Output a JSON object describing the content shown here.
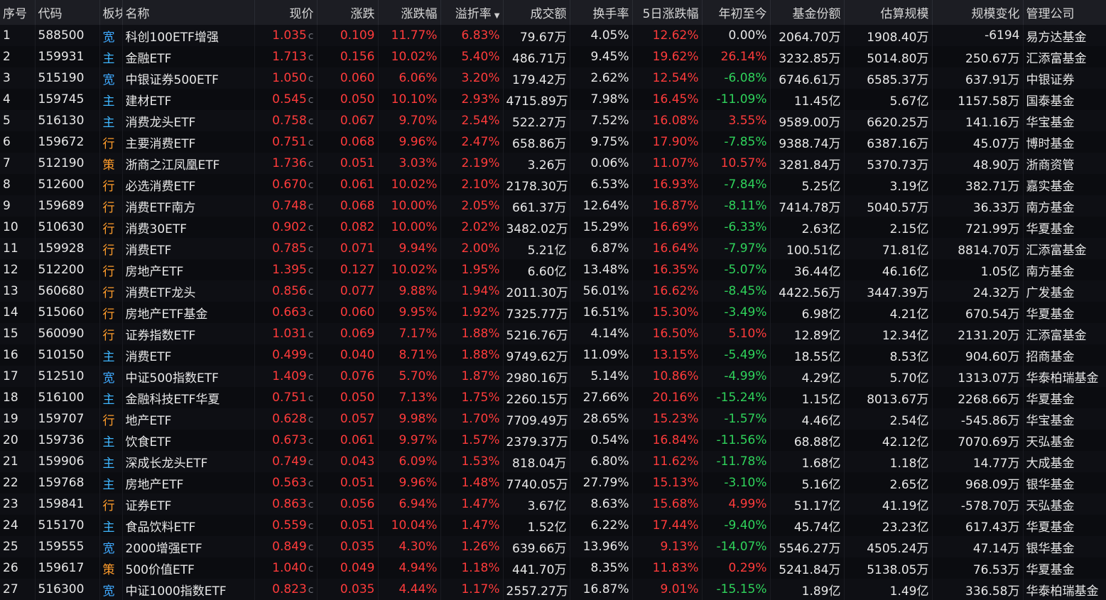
{
  "columns": [
    {
      "key": "idx",
      "label": "序号"
    },
    {
      "key": "code",
      "label": "代码"
    },
    {
      "key": "sector",
      "label": "板块"
    },
    {
      "key": "name",
      "label": "名称"
    },
    {
      "key": "price",
      "label": "现价"
    },
    {
      "key": "change",
      "label": "涨跌"
    },
    {
      "key": "pct",
      "label": "涨跌幅"
    },
    {
      "key": "premium",
      "label": "溢折率"
    },
    {
      "key": "volume",
      "label": "成交额"
    },
    {
      "key": "turnover",
      "label": "换手率"
    },
    {
      "key": "pct5",
      "label": "5日涨跌幅"
    },
    {
      "key": "ytd",
      "label": "年初至今"
    },
    {
      "key": "shares",
      "label": "基金份额"
    },
    {
      "key": "scale",
      "label": "估算规模"
    },
    {
      "key": "scale_change",
      "label": "规模变化"
    },
    {
      "key": "manager",
      "label": "管理公司"
    }
  ],
  "sorted_column": "premium",
  "price_suffix": "c",
  "rows": [
    {
      "idx": "1",
      "code": "588500",
      "sector": "宽",
      "name": "科创100ETF增强",
      "price": "1.035",
      "change": "0.109",
      "pct": "11.77%",
      "premium": "6.83%",
      "volume": "79.67万",
      "turnover": "4.05%",
      "pct5": "12.62%",
      "ytd": "0.00%",
      "shares": "2064.70万",
      "scale": "1908.40万",
      "scale_change": "-6194",
      "manager": "易方达基金"
    },
    {
      "idx": "2",
      "code": "159931",
      "sector": "主",
      "name": "金融ETF",
      "price": "1.713",
      "change": "0.156",
      "pct": "10.02%",
      "premium": "5.40%",
      "volume": "486.71万",
      "turnover": "9.45%",
      "pct5": "19.62%",
      "ytd": "26.14%",
      "shares": "3232.85万",
      "scale": "5014.80万",
      "scale_change": "250.67万",
      "manager": "汇添富基金"
    },
    {
      "idx": "3",
      "code": "515190",
      "sector": "宽",
      "name": "中银证券500ETF",
      "price": "1.050",
      "change": "0.060",
      "pct": "6.06%",
      "premium": "3.20%",
      "volume": "179.42万",
      "turnover": "2.62%",
      "pct5": "12.54%",
      "ytd": "-6.08%",
      "shares": "6746.61万",
      "scale": "6585.37万",
      "scale_change": "637.91万",
      "manager": "中银证券"
    },
    {
      "idx": "4",
      "code": "159745",
      "sector": "主",
      "name": "建材ETF",
      "price": "0.545",
      "change": "0.050",
      "pct": "10.10%",
      "premium": "2.93%",
      "volume": "4715.89万",
      "turnover": "7.98%",
      "pct5": "16.45%",
      "ytd": "-11.09%",
      "shares": "11.45亿",
      "scale": "5.67亿",
      "scale_change": "1157.58万",
      "manager": "国泰基金"
    },
    {
      "idx": "5",
      "code": "516130",
      "sector": "主",
      "name": "消费龙头ETF",
      "price": "0.758",
      "change": "0.067",
      "pct": "9.70%",
      "premium": "2.54%",
      "volume": "522.27万",
      "turnover": "7.52%",
      "pct5": "16.08%",
      "ytd": "3.55%",
      "shares": "9589.00万",
      "scale": "6620.25万",
      "scale_change": "141.16万",
      "manager": "华宝基金"
    },
    {
      "idx": "6",
      "code": "159672",
      "sector": "行",
      "name": "主要消费ETF",
      "price": "0.751",
      "change": "0.068",
      "pct": "9.96%",
      "premium": "2.47%",
      "volume": "658.86万",
      "turnover": "9.75%",
      "pct5": "17.90%",
      "ytd": "-7.85%",
      "shares": "9388.74万",
      "scale": "6387.16万",
      "scale_change": "45.07万",
      "manager": "博时基金"
    },
    {
      "idx": "7",
      "code": "512190",
      "sector": "策",
      "name": "浙商之江凤凰ETF",
      "price": "1.736",
      "change": "0.051",
      "pct": "3.03%",
      "premium": "2.19%",
      "volume": "3.26万",
      "turnover": "0.06%",
      "pct5": "11.07%",
      "ytd": "10.57%",
      "shares": "3281.84万",
      "scale": "5370.73万",
      "scale_change": "48.90万",
      "manager": "浙商资管"
    },
    {
      "idx": "8",
      "code": "512600",
      "sector": "行",
      "name": "必选消费ETF",
      "price": "0.670",
      "change": "0.061",
      "pct": "10.02%",
      "premium": "2.10%",
      "volume": "2178.30万",
      "turnover": "6.53%",
      "pct5": "16.93%",
      "ytd": "-7.84%",
      "shares": "5.25亿",
      "scale": "3.19亿",
      "scale_change": "382.71万",
      "manager": "嘉实基金"
    },
    {
      "idx": "9",
      "code": "159689",
      "sector": "行",
      "name": "消费ETF南方",
      "price": "0.748",
      "change": "0.068",
      "pct": "10.00%",
      "premium": "2.05%",
      "volume": "661.37万",
      "turnover": "12.64%",
      "pct5": "16.87%",
      "ytd": "-8.11%",
      "shares": "7414.78万",
      "scale": "5040.57万",
      "scale_change": "36.33万",
      "manager": "南方基金"
    },
    {
      "idx": "10",
      "code": "510630",
      "sector": "行",
      "name": "消费30ETF",
      "price": "0.902",
      "change": "0.082",
      "pct": "10.00%",
      "premium": "2.02%",
      "volume": "3482.02万",
      "turnover": "15.29%",
      "pct5": "16.69%",
      "ytd": "-6.33%",
      "shares": "2.63亿",
      "scale": "2.15亿",
      "scale_change": "721.99万",
      "manager": "华夏基金"
    },
    {
      "idx": "11",
      "code": "159928",
      "sector": "行",
      "name": "消费ETF",
      "price": "0.785",
      "change": "0.071",
      "pct": "9.94%",
      "premium": "2.00%",
      "volume": "5.21亿",
      "turnover": "6.87%",
      "pct5": "16.64%",
      "ytd": "-7.97%",
      "shares": "100.51亿",
      "scale": "71.81亿",
      "scale_change": "8814.70万",
      "manager": "汇添富基金"
    },
    {
      "idx": "12",
      "code": "512200",
      "sector": "行",
      "name": "房地产ETF",
      "price": "1.395",
      "change": "0.127",
      "pct": "10.02%",
      "premium": "1.95%",
      "volume": "6.60亿",
      "turnover": "13.48%",
      "pct5": "16.35%",
      "ytd": "-5.07%",
      "shares": "36.44亿",
      "scale": "46.16亿",
      "scale_change": "1.05亿",
      "manager": "南方基金"
    },
    {
      "idx": "13",
      "code": "560680",
      "sector": "行",
      "name": "消费ETF龙头",
      "price": "0.856",
      "change": "0.077",
      "pct": "9.88%",
      "premium": "1.94%",
      "volume": "2011.30万",
      "turnover": "56.01%",
      "pct5": "16.62%",
      "ytd": "-8.45%",
      "shares": "4422.56万",
      "scale": "3447.39万",
      "scale_change": "24.32万",
      "manager": "广发基金"
    },
    {
      "idx": "14",
      "code": "515060",
      "sector": "行",
      "name": "房地产ETF基金",
      "price": "0.663",
      "change": "0.060",
      "pct": "9.95%",
      "premium": "1.92%",
      "volume": "7325.77万",
      "turnover": "16.51%",
      "pct5": "15.30%",
      "ytd": "-3.49%",
      "shares": "6.98亿",
      "scale": "4.21亿",
      "scale_change": "670.54万",
      "manager": "华夏基金"
    },
    {
      "idx": "15",
      "code": "560090",
      "sector": "行",
      "name": "证券指数ETF",
      "price": "1.031",
      "change": "0.069",
      "pct": "7.17%",
      "premium": "1.88%",
      "volume": "5216.76万",
      "turnover": "4.14%",
      "pct5": "16.50%",
      "ytd": "5.10%",
      "shares": "12.89亿",
      "scale": "12.34亿",
      "scale_change": "2131.20万",
      "manager": "汇添富基金"
    },
    {
      "idx": "16",
      "code": "510150",
      "sector": "主",
      "name": "消费ETF",
      "price": "0.499",
      "change": "0.040",
      "pct": "8.71%",
      "premium": "1.88%",
      "volume": "9749.62万",
      "turnover": "11.09%",
      "pct5": "13.15%",
      "ytd": "-5.49%",
      "shares": "18.55亿",
      "scale": "8.53亿",
      "scale_change": "904.60万",
      "manager": "招商基金"
    },
    {
      "idx": "17",
      "code": "512510",
      "sector": "宽",
      "name": "中证500指数ETF",
      "price": "1.409",
      "change": "0.076",
      "pct": "5.70%",
      "premium": "1.87%",
      "volume": "2980.16万",
      "turnover": "5.14%",
      "pct5": "10.86%",
      "ytd": "-4.99%",
      "shares": "4.29亿",
      "scale": "5.70亿",
      "scale_change": "1313.07万",
      "manager": "华泰柏瑞基金"
    },
    {
      "idx": "18",
      "code": "516100",
      "sector": "主",
      "name": "金融科技ETF华夏",
      "price": "0.751",
      "change": "0.050",
      "pct": "7.13%",
      "premium": "1.75%",
      "volume": "2260.15万",
      "turnover": "27.66%",
      "pct5": "20.16%",
      "ytd": "-15.24%",
      "shares": "1.15亿",
      "scale": "8013.67万",
      "scale_change": "2268.66万",
      "manager": "华夏基金"
    },
    {
      "idx": "19",
      "code": "159707",
      "sector": "行",
      "name": "地产ETF",
      "price": "0.628",
      "change": "0.057",
      "pct": "9.98%",
      "premium": "1.70%",
      "volume": "7709.49万",
      "turnover": "28.65%",
      "pct5": "15.23%",
      "ytd": "-1.57%",
      "shares": "4.46亿",
      "scale": "2.54亿",
      "scale_change": "-545.86万",
      "manager": "华宝基金"
    },
    {
      "idx": "20",
      "code": "159736",
      "sector": "主",
      "name": "饮食ETF",
      "price": "0.673",
      "change": "0.061",
      "pct": "9.97%",
      "premium": "1.57%",
      "volume": "2379.37万",
      "turnover": "0.54%",
      "pct5": "16.84%",
      "ytd": "-11.56%",
      "shares": "68.88亿",
      "scale": "42.12亿",
      "scale_change": "7070.69万",
      "manager": "天弘基金"
    },
    {
      "idx": "21",
      "code": "159906",
      "sector": "主",
      "name": "深成长龙头ETF",
      "price": "0.749",
      "change": "0.043",
      "pct": "6.09%",
      "premium": "1.53%",
      "volume": "818.04万",
      "turnover": "6.80%",
      "pct5": "11.62%",
      "ytd": "-11.78%",
      "shares": "1.68亿",
      "scale": "1.18亿",
      "scale_change": "14.77万",
      "manager": "大成基金"
    },
    {
      "idx": "22",
      "code": "159768",
      "sector": "主",
      "name": "房地产ETF",
      "price": "0.563",
      "change": "0.051",
      "pct": "9.96%",
      "premium": "1.48%",
      "volume": "7740.05万",
      "turnover": "27.79%",
      "pct5": "15.13%",
      "ytd": "-3.10%",
      "shares": "5.16亿",
      "scale": "2.65亿",
      "scale_change": "968.09万",
      "manager": "银华基金"
    },
    {
      "idx": "23",
      "code": "159841",
      "sector": "行",
      "name": "证券ETF",
      "price": "0.863",
      "change": "0.056",
      "pct": "6.94%",
      "premium": "1.47%",
      "volume": "3.67亿",
      "turnover": "8.63%",
      "pct5": "15.68%",
      "ytd": "4.99%",
      "shares": "51.17亿",
      "scale": "41.19亿",
      "scale_change": "-578.70万",
      "manager": "天弘基金"
    },
    {
      "idx": "24",
      "code": "515170",
      "sector": "主",
      "name": "食品饮料ETF",
      "price": "0.559",
      "change": "0.051",
      "pct": "10.04%",
      "premium": "1.47%",
      "volume": "1.52亿",
      "turnover": "6.22%",
      "pct5": "17.44%",
      "ytd": "-9.40%",
      "shares": "45.74亿",
      "scale": "23.23亿",
      "scale_change": "617.43万",
      "manager": "华夏基金"
    },
    {
      "idx": "25",
      "code": "159555",
      "sector": "宽",
      "name": "2000增强ETF",
      "price": "0.849",
      "change": "0.035",
      "pct": "4.30%",
      "premium": "1.26%",
      "volume": "639.66万",
      "turnover": "13.96%",
      "pct5": "9.13%",
      "ytd": "-14.07%",
      "shares": "5546.27万",
      "scale": "4505.24万",
      "scale_change": "47.14万",
      "manager": "银华基金"
    },
    {
      "idx": "26",
      "code": "159617",
      "sector": "策",
      "name": "500价值ETF",
      "price": "1.040",
      "change": "0.049",
      "pct": "4.94%",
      "premium": "1.18%",
      "volume": "441.70万",
      "turnover": "8.35%",
      "pct5": "11.83%",
      "ytd": "0.29%",
      "shares": "5241.84万",
      "scale": "5138.05万",
      "scale_change": "76.53万",
      "manager": "华夏基金"
    },
    {
      "idx": "27",
      "code": "516300",
      "sector": "宽",
      "name": "中证1000指数ETF",
      "price": "0.823",
      "change": "0.035",
      "pct": "4.44%",
      "premium": "1.17%",
      "volume": "2557.27万",
      "turnover": "16.87%",
      "pct5": "9.01%",
      "ytd": "-15.15%",
      "shares": "1.89亿",
      "scale": "1.49亿",
      "scale_change": "336.58万",
      "manager": "华泰柏瑞基金"
    }
  ],
  "colors": {
    "up": "#ff3b3b",
    "down": "#2fd35b",
    "neutral": "#e8e8e8",
    "header_bg": "#1c1d23",
    "body_bg": "#0b0c10"
  }
}
